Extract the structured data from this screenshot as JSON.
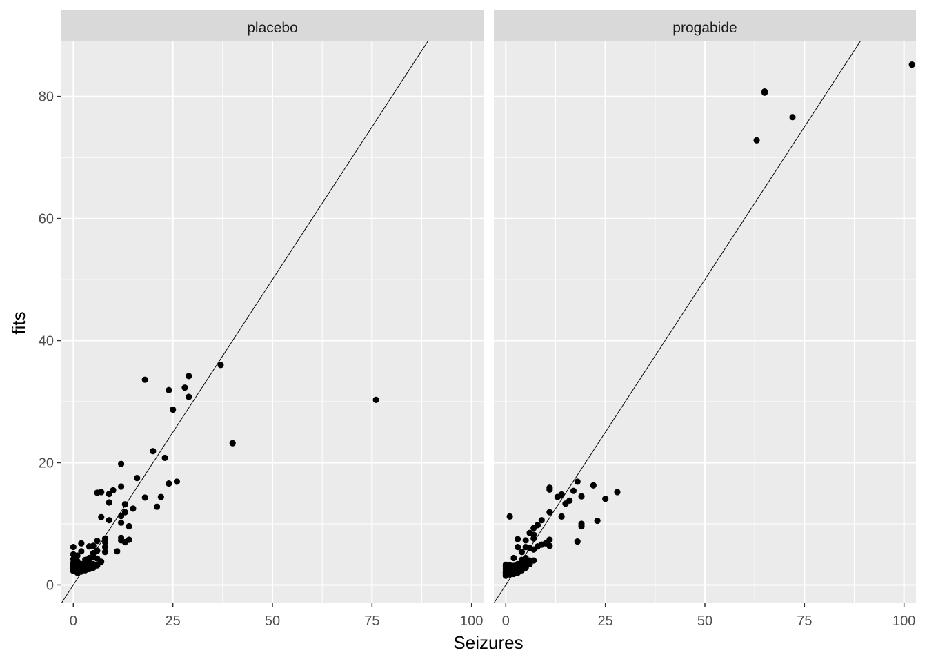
{
  "chart_data": {
    "type": "scatter",
    "xlabel": "Seizures",
    "ylabel": "fits",
    "xlim": [
      -3,
      103
    ],
    "ylim": [
      -3,
      89
    ],
    "x_ticks": [
      0,
      25,
      50,
      75,
      100
    ],
    "y_ticks": [
      0,
      20,
      40,
      60,
      80
    ],
    "x_tick_labels": [
      "0",
      "25",
      "50",
      "75",
      "100"
    ],
    "y_tick_labels": [
      "0",
      "20",
      "40",
      "60",
      "80"
    ],
    "grid": true,
    "reference_line": {
      "slope": 1,
      "intercept": 0
    },
    "colors": {
      "panel_bg": "#ebebeb",
      "strip_bg": "#d9d9d9",
      "grid": "#ffffff",
      "points": "#000000",
      "line": "#000000",
      "text": "#4d4d4d"
    },
    "panels": [
      {
        "label": "placebo",
        "points": [
          [
            0,
            2.3
          ],
          [
            0,
            2.6
          ],
          [
            0,
            3.0
          ],
          [
            0,
            3.3
          ],
          [
            0,
            3.6
          ],
          [
            0,
            4.2
          ],
          [
            0,
            5.0
          ],
          [
            0,
            6.2
          ],
          [
            1,
            2.0
          ],
          [
            1,
            2.5
          ],
          [
            1,
            3.2
          ],
          [
            1,
            3.9
          ],
          [
            1,
            4.8
          ],
          [
            2,
            2.2
          ],
          [
            2,
            2.8
          ],
          [
            2,
            3.4
          ],
          [
            2,
            5.5
          ],
          [
            2,
            6.8
          ],
          [
            3,
            2.4
          ],
          [
            3,
            3.0
          ],
          [
            3,
            3.6
          ],
          [
            3,
            4.1
          ],
          [
            4,
            2.6
          ],
          [
            4,
            3.2
          ],
          [
            4,
            3.8
          ],
          [
            4,
            4.4
          ],
          [
            4,
            6.3
          ],
          [
            5,
            2.8
          ],
          [
            5,
            3.4
          ],
          [
            5,
            4.6
          ],
          [
            5,
            5.2
          ],
          [
            5,
            6.4
          ],
          [
            6,
            3.2
          ],
          [
            6,
            4.3
          ],
          [
            6,
            5.6
          ],
          [
            6,
            7.2
          ],
          [
            6,
            15.1
          ],
          [
            7,
            3.8
          ],
          [
            7,
            11.1
          ],
          [
            7,
            15.2
          ],
          [
            8,
            5.4
          ],
          [
            8,
            6.2
          ],
          [
            8,
            7.0
          ],
          [
            8,
            7.6
          ],
          [
            9,
            10.6
          ],
          [
            9,
            13.5
          ],
          [
            9,
            14.9
          ],
          [
            10,
            15.5
          ],
          [
            11,
            5.5
          ],
          [
            12,
            7.3
          ],
          [
            12,
            7.7
          ],
          [
            12,
            10.2
          ],
          [
            12,
            11.3
          ],
          [
            12,
            16.1
          ],
          [
            12,
            19.8
          ],
          [
            13,
            7.0
          ],
          [
            13,
            11.9
          ],
          [
            13,
            13.2
          ],
          [
            14,
            7.4
          ],
          [
            14,
            9.6
          ],
          [
            15,
            12.5
          ],
          [
            16,
            17.5
          ],
          [
            18,
            14.3
          ],
          [
            18,
            33.6
          ],
          [
            20,
            21.9
          ],
          [
            21,
            12.8
          ],
          [
            22,
            14.4
          ],
          [
            23,
            20.8
          ],
          [
            24,
            16.6
          ],
          [
            24,
            31.9
          ],
          [
            25,
            28.7
          ],
          [
            26,
            16.9
          ],
          [
            28,
            32.3
          ],
          [
            29,
            30.8
          ],
          [
            29,
            34.2
          ],
          [
            37,
            36.0
          ],
          [
            40,
            23.2
          ],
          [
            76,
            30.3
          ]
        ]
      },
      {
        "label": "progabide",
        "points": [
          [
            0,
            1.5
          ],
          [
            0,
            1.9
          ],
          [
            0,
            2.2
          ],
          [
            0,
            2.6
          ],
          [
            0,
            3.0
          ],
          [
            0,
            3.3
          ],
          [
            1,
            1.7
          ],
          [
            1,
            2.1
          ],
          [
            1,
            2.5
          ],
          [
            1,
            2.9
          ],
          [
            1,
            3.2
          ],
          [
            1,
            11.2
          ],
          [
            2,
            1.8
          ],
          [
            2,
            2.3
          ],
          [
            2,
            2.7
          ],
          [
            2,
            3.1
          ],
          [
            2,
            4.4
          ],
          [
            3,
            2.0
          ],
          [
            3,
            2.6
          ],
          [
            3,
            3.4
          ],
          [
            3,
            6.2
          ],
          [
            3,
            7.5
          ],
          [
            4,
            2.4
          ],
          [
            4,
            3.2
          ],
          [
            4,
            4.1
          ],
          [
            4,
            5.4
          ],
          [
            5,
            2.8
          ],
          [
            5,
            3.6
          ],
          [
            5,
            4.4
          ],
          [
            5,
            6.2
          ],
          [
            5,
            7.3
          ],
          [
            6,
            3.4
          ],
          [
            6,
            4.0
          ],
          [
            6,
            6.0
          ],
          [
            6,
            8.5
          ],
          [
            7,
            4.0
          ],
          [
            7,
            5.8
          ],
          [
            7,
            7.6
          ],
          [
            7,
            8.2
          ],
          [
            7,
            9.3
          ],
          [
            8,
            6.3
          ],
          [
            8,
            9.8
          ],
          [
            9,
            6.6
          ],
          [
            9,
            10.6
          ],
          [
            10,
            6.8
          ],
          [
            11,
            6.4
          ],
          [
            11,
            7.4
          ],
          [
            11,
            11.9
          ],
          [
            11,
            15.6
          ],
          [
            11,
            15.9
          ],
          [
            13,
            14.4
          ],
          [
            14,
            11.2
          ],
          [
            14,
            14.8
          ],
          [
            15,
            13.3
          ],
          [
            16,
            13.8
          ],
          [
            17,
            15.4
          ],
          [
            18,
            7.1
          ],
          [
            18,
            16.9
          ],
          [
            19,
            9.6
          ],
          [
            19,
            10.0
          ],
          [
            19,
            14.5
          ],
          [
            22,
            16.3
          ],
          [
            23,
            10.5
          ],
          [
            25,
            14.1
          ],
          [
            28,
            15.2
          ],
          [
            63,
            72.8
          ],
          [
            65,
            80.6
          ],
          [
            65,
            80.8
          ],
          [
            72,
            76.6
          ],
          [
            102,
            85.2
          ]
        ]
      }
    ]
  }
}
